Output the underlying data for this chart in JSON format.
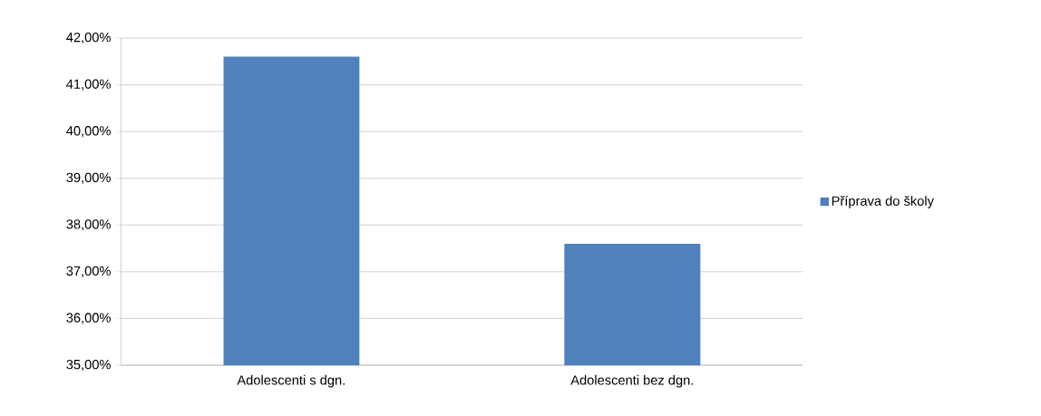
{
  "chart_data": {
    "type": "bar",
    "categories": [
      "Adolescenti s dgn.",
      "Adolescenti bez dgn."
    ],
    "series": [
      {
        "name": "Příprava do školy",
        "color": "#4f81bd",
        "values": [
          41.6,
          37.6
        ]
      }
    ],
    "ylim": [
      35,
      42
    ],
    "yticks": [
      {
        "value": 35,
        "label": "35,00%"
      },
      {
        "value": 36,
        "label": "36,00%"
      },
      {
        "value": 37,
        "label": "37,00%"
      },
      {
        "value": 38,
        "label": "38,00%"
      },
      {
        "value": 39,
        "label": "39,00%"
      },
      {
        "value": 40,
        "label": "40,00%"
      },
      {
        "value": 41,
        "label": "41,00%"
      },
      {
        "value": 42,
        "label": "42,00%"
      }
    ],
    "grid": "y",
    "legend": "right"
  }
}
